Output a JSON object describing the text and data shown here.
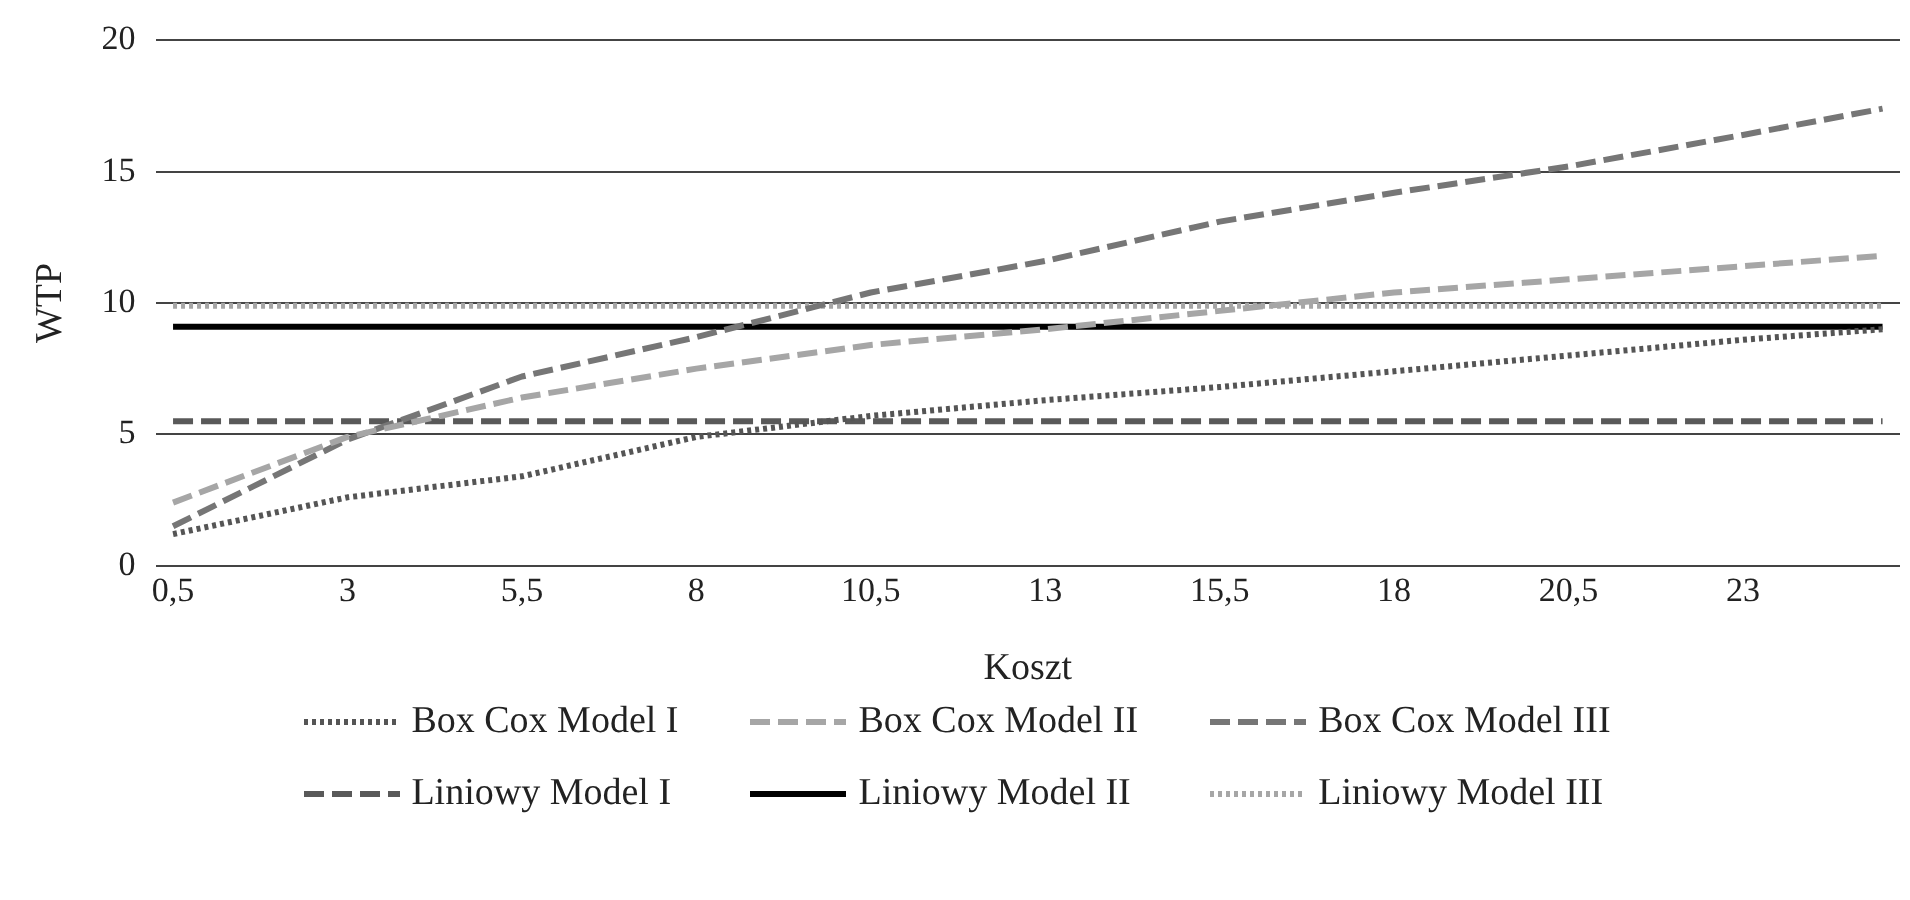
{
  "chart_data": {
    "type": "line",
    "xlabel": "Koszt",
    "ylabel": "WTP",
    "xlim": [
      0.25,
      25.25
    ],
    "xticks": [
      {
        "value": 0.5,
        "label": "0,5"
      },
      3,
      {
        "value": 5.5,
        "label": "5,5"
      },
      8,
      {
        "value": 10.5,
        "label": "10,5"
      },
      13,
      {
        "value": 15.5,
        "label": "15,5"
      },
      18,
      {
        "value": 20.5,
        "label": "20,5"
      },
      23
    ],
    "ylim": [
      0,
      20
    ],
    "yticks": [
      0,
      5,
      10,
      15,
      20
    ],
    "grid": "y",
    "legend": "bottom",
    "marker": "none",
    "series": [
      {
        "name": "Box Cox Model I",
        "color": "#555555",
        "line_style": "dotted",
        "x": [
          0.5,
          3,
          5.5,
          8,
          10.5,
          13,
          15.5,
          18,
          20.5,
          23,
          25
        ],
        "values": [
          1.2,
          2.6,
          3.4,
          4.9,
          5.7,
          6.3,
          6.8,
          7.4,
          8,
          8.6,
          9
        ]
      },
      {
        "name": "Box Cox Model II",
        "color": "#a6a6a6",
        "line_style": "dashed",
        "x": [
          0.5,
          3,
          5.5,
          8,
          10.5,
          13,
          15.5,
          18,
          20.5,
          23,
          25
        ],
        "values": [
          2.4,
          4.9,
          6.4,
          7.5,
          8.4,
          9,
          9.7,
          10.4,
          10.9,
          11.4,
          11.8
        ]
      },
      {
        "name": "Box Cox Model III",
        "color": "#767676",
        "line_style": "dashed",
        "x": [
          0.5,
          3,
          5.5,
          8,
          10.5,
          13,
          15.5,
          18,
          20.5,
          23,
          25
        ],
        "values": [
          1.5,
          4.8,
          7.2,
          8.7,
          10.4,
          11.6,
          13.1,
          14.2,
          15.2,
          16.4,
          17.4
        ]
      },
      {
        "name": "Liniowy Model I",
        "color": "#595959",
        "line_style": "dashed",
        "x": [
          0.5,
          25
        ],
        "values": [
          5.5,
          5.5
        ]
      },
      {
        "name": "Liniowy Model II",
        "color": "#000000",
        "line_style": "solid",
        "x": [
          0.5,
          25
        ],
        "values": [
          9.1,
          9.1
        ]
      },
      {
        "name": "Liniowy Model III",
        "color": "#a6a6a6",
        "line_style": "dotted",
        "x": [
          0.5,
          25
        ],
        "values": [
          9.9,
          9.9
        ]
      }
    ]
  }
}
